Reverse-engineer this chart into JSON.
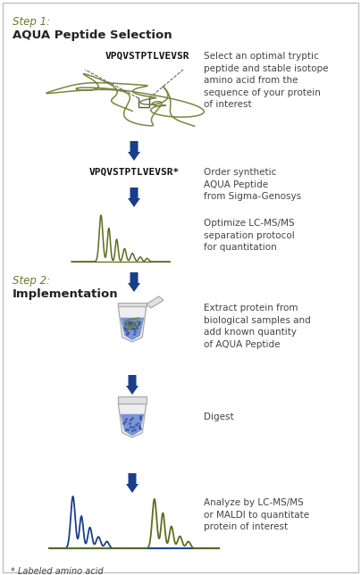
{
  "bg_color": "#ffffff",
  "border_color": "#c0c0c0",
  "step1_label": "Step 1:",
  "step1_title": "AQUA Peptide Selection",
  "step2_label": "Step 2:",
  "step2_title": "Implementation",
  "olive_color": "#6b7a2a",
  "text_color": "#444444",
  "peptide1": "VPQVSTPTLVEVSR",
  "peptide2": "VPQVSTPTLVEVSR*",
  "desc1": "Select an optimal tryptic\npeptide and stable isotope\namino acid from the\nsequence of your protein\nof interest",
  "desc2": "Order synthetic\nAQUA Peptide\nfrom Sigma-Genosys",
  "desc3": "Optimize LC-MS/MS\nseparation protocol\nfor quantitation",
  "desc4": "Extract protein from\nbiological samples and\nadd known quantity\nof AQUA Peptide",
  "desc5": "Digest",
  "desc6": "Analyze by LC-MS/MS\nor MALDI to quantitate\nprotein of interest",
  "footnote": "* Labeled amino acid",
  "arrow_color": "#1a3f8a",
  "green_peak_color": "#5a6e1e",
  "blue_peak_color": "#1a3f8a",
  "tube_body_color": "#e8e8e8",
  "tube_edge_color": "#999999",
  "tube_liquid_color": "#4466bb"
}
